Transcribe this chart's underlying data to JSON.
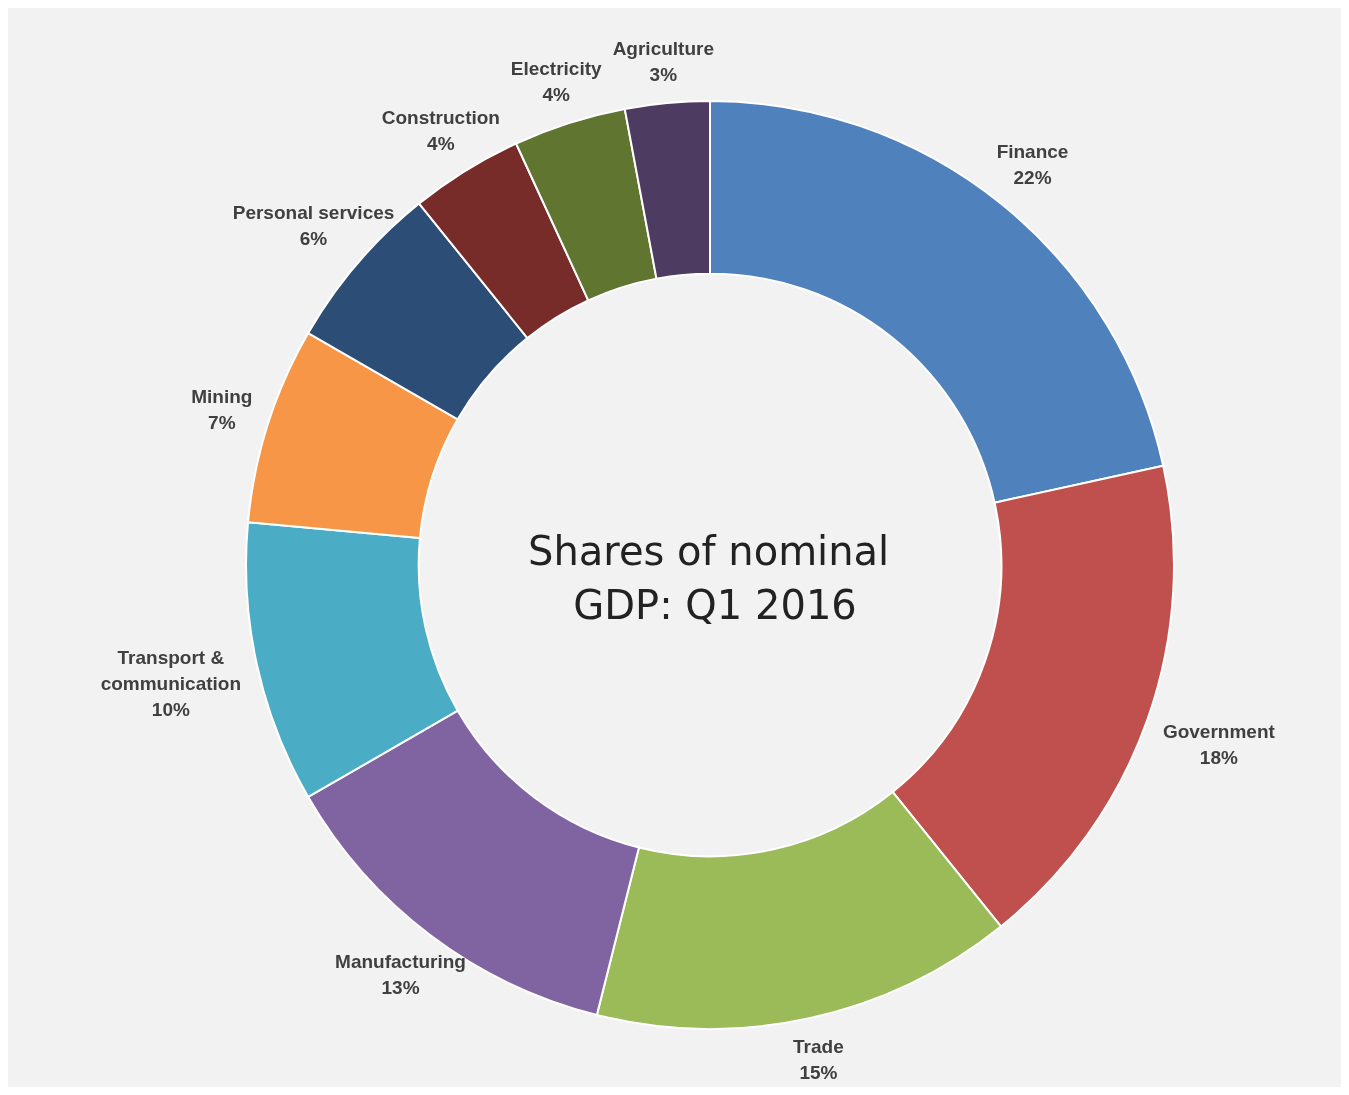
{
  "chart_data": {
    "type": "donut",
    "title": "Shares of nominal GDP: Q1 2016",
    "categories": [
      "Finance",
      "Government",
      "Trade",
      "Manufacturing",
      "Transport & communication",
      "Mining",
      "Personal services",
      "Construction",
      "Electricity",
      "Agriculture"
    ],
    "values": [
      22,
      18,
      15,
      13,
      10,
      7,
      6,
      4,
      4,
      3
    ],
    "value_labels": [
      "22%",
      "18%",
      "15%",
      "13%",
      "10%",
      "7%",
      "6%",
      "4%",
      "4%",
      "3%"
    ],
    "colors": [
      "#4f81bd",
      "#c0504d",
      "#9bbb59",
      "#8064a2",
      "#4bacc6",
      "#f79646",
      "#2c4d75",
      "#772c2a",
      "#5f7530",
      "#4d3b62"
    ],
    "legend": false
  }
}
